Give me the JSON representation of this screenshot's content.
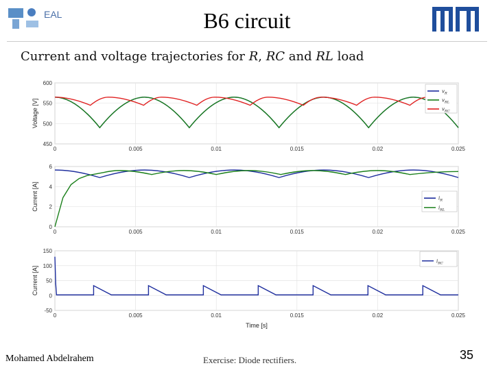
{
  "header": {
    "title": "B6 circuit",
    "logo_text": "EAL",
    "subtitle_prefix": "Current and voltage trajectories for ",
    "subtitle_r": "R",
    "subtitle_sep": ", ",
    "subtitle_rc": "RC",
    "subtitle_and": " and ",
    "subtitle_rl": "RL",
    "subtitle_suffix": " load"
  },
  "footer": {
    "author": "Mohamed Abdelrahem",
    "topic": "Exercise: Diode rectifiers.",
    "page": "35"
  },
  "colors": {
    "blue": "#1f2f9e",
    "green": "#1a7f1a",
    "red": "#e02020",
    "grid": "#e3e3e3"
  },
  "chart_data": [
    {
      "type": "line",
      "ylabel": "Voltage [V]",
      "xlim": [
        0,
        0.025
      ],
      "ylim": [
        450,
        600
      ],
      "x_ticks": [
        "0",
        "0.005",
        "0.01",
        "0.015",
        "0.02",
        "0.025"
      ],
      "y_ticks": [
        "450",
        "500",
        "550",
        "600"
      ],
      "grid": true,
      "legend_position": "top-right",
      "series": [
        {
          "name": "vR",
          "color": "#1f2f9e",
          "x": [
            0,
            0.00278,
            0.00556,
            0.00833,
            0.01111,
            0.01389,
            0.01667,
            0.01944,
            0.02222,
            0.025
          ],
          "y": [
            565,
            490,
            565,
            490,
            565,
            490,
            565,
            490,
            565,
            490
          ]
        },
        {
          "name": "vRL",
          "color": "#1a7f1a",
          "x": [
            0,
            0.00278,
            0.00556,
            0.00833,
            0.01111,
            0.01389,
            0.01667,
            0.01944,
            0.02222,
            0.025
          ],
          "y": [
            565,
            490,
            565,
            490,
            565,
            490,
            565,
            490,
            565,
            490
          ]
        },
        {
          "name": "vRC",
          "color": "#e02020",
          "x": [
            0,
            0.0022,
            0.0033,
            0.0055,
            0.0066,
            0.0088,
            0.0099,
            0.0121,
            0.0132,
            0.0154,
            0.0165,
            0.0187,
            0.0198,
            0.022,
            0.0231
          ],
          "y": [
            565,
            545,
            565,
            545,
            565,
            545,
            565,
            545,
            565,
            545,
            565,
            545,
            565,
            545,
            565
          ]
        }
      ]
    },
    {
      "type": "line",
      "ylabel": "Current [A]",
      "xlim": [
        0,
        0.025
      ],
      "ylim": [
        0,
        6
      ],
      "x_ticks": [
        "0",
        "0.005",
        "0.01",
        "0.015",
        "0.02",
        "0.025"
      ],
      "y_ticks": [
        "0",
        "2",
        "4",
        "6"
      ],
      "grid": true,
      "legend_position": "bottom-right",
      "series": [
        {
          "name": "iR",
          "color": "#1f2f9e",
          "x": [
            0,
            0.00278,
            0.00556,
            0.00833,
            0.01111,
            0.01389,
            0.01667,
            0.01944,
            0.02222,
            0.025
          ],
          "y": [
            5.65,
            4.9,
            5.65,
            4.9,
            5.65,
            4.9,
            5.65,
            4.9,
            5.65,
            4.9
          ]
        },
        {
          "name": "iRL",
          "color": "#1a7f1a",
          "x": [
            0,
            0.0005,
            0.001,
            0.0015,
            0.002,
            0.003,
            0.004,
            0.006,
            0.008,
            0.01,
            0.012,
            0.014,
            0.016,
            0.018,
            0.02,
            0.022,
            0.025
          ],
          "y": [
            0,
            2.9,
            4.2,
            4.8,
            5.1,
            5.4,
            5.6,
            5.2,
            5.6,
            5.2,
            5.6,
            5.2,
            5.6,
            5.2,
            5.6,
            5.2,
            5.5
          ]
        }
      ]
    },
    {
      "type": "line",
      "ylabel": "Current [A]",
      "xlabel": "Time [s]",
      "xlim": [
        0,
        0.025
      ],
      "ylim": [
        -50,
        150
      ],
      "x_ticks": [
        "0",
        "0.005",
        "0.01",
        "0.015",
        "0.02",
        "0.025"
      ],
      "y_ticks": [
        "-50",
        "0",
        "50",
        "100",
        "150"
      ],
      "grid": true,
      "legend_position": "top-right",
      "series": [
        {
          "name": "iRC",
          "color": "#1f2f9e",
          "x": [
            0,
            5e-05,
            0.0001,
            0.0024,
            0.0024,
            0.0035,
            0.0058,
            0.0058,
            0.0069,
            0.0092,
            0.0092,
            0.0103,
            0.0126,
            0.0126,
            0.0137,
            0.016,
            0.016,
            0.0171,
            0.0194,
            0.0194,
            0.0205,
            0.0228,
            0.0228,
            0.0239,
            0.025
          ],
          "y": [
            130,
            40,
            2,
            2,
            33,
            2,
            2,
            33,
            2,
            2,
            33,
            2,
            2,
            33,
            2,
            2,
            33,
            2,
            2,
            33,
            2,
            2,
            33,
            2,
            2
          ]
        }
      ]
    }
  ]
}
